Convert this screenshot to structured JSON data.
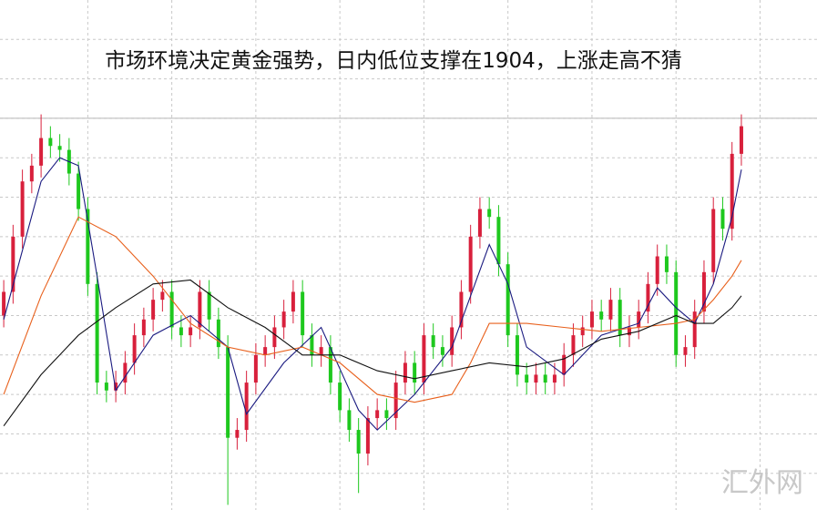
{
  "chart_data": {
    "type": "candlestick",
    "title": "市场环境决定黄金强势，日内低位支撑在1904，上涨走高不猜",
    "watermark": "汇外网",
    "up_color": "#d8203c",
    "down_color": "#1ec81e",
    "ylim": [
      0,
      130
    ],
    "yticks": [
      10,
      20,
      30,
      40,
      50,
      60,
      70,
      80,
      90,
      100,
      110,
      120
    ],
    "xlim": [
      -0.4,
      87.1
    ],
    "xticks": [
      9,
      18,
      27,
      36,
      45,
      54,
      63,
      72,
      81
    ],
    "grid": true,
    "hline": 100,
    "open": [
      50,
      56,
      70,
      84,
      88,
      95,
      93,
      92,
      86,
      77,
      58,
      33,
      31,
      33,
      38,
      45,
      49,
      54,
      56,
      47,
      45,
      47,
      56,
      49,
      42,
      19,
      21,
      33,
      40,
      42,
      47,
      51,
      56,
      45,
      40,
      42,
      33,
      26,
      21,
      15,
      24,
      26,
      24,
      33,
      38,
      33,
      45,
      42,
      40,
      47,
      56,
      70,
      77,
      75,
      63,
      45,
      35,
      33,
      35,
      33,
      35,
      40,
      45,
      47,
      51,
      49,
      54,
      45,
      47,
      51,
      58,
      65,
      61,
      40,
      42,
      51,
      61,
      77,
      72,
      91
    ],
    "high": [
      59,
      73,
      87,
      91,
      101,
      98,
      96,
      95,
      89,
      80,
      61,
      36,
      36,
      41,
      48,
      52,
      57,
      59,
      59,
      50,
      50,
      59,
      59,
      52,
      45,
      24,
      36,
      43,
      45,
      50,
      54,
      59,
      59,
      48,
      45,
      45,
      36,
      29,
      24,
      27,
      29,
      29,
      36,
      41,
      41,
      48,
      48,
      45,
      50,
      59,
      73,
      80,
      80,
      78,
      66,
      48,
      38,
      38,
      38,
      38,
      43,
      48,
      50,
      54,
      54,
      57,
      57,
      50,
      54,
      61,
      68,
      68,
      64,
      45,
      54,
      64,
      80,
      80,
      94,
      101
    ],
    "low": [
      47,
      53,
      67,
      81,
      85,
      90,
      89,
      83,
      74,
      55,
      30,
      28,
      28,
      30,
      35,
      42,
      46,
      51,
      44,
      42,
      42,
      44,
      46,
      39,
      2,
      16,
      18,
      30,
      37,
      39,
      44,
      48,
      42,
      37,
      37,
      30,
      23,
      18,
      5,
      12,
      21,
      21,
      21,
      30,
      30,
      30,
      39,
      37,
      37,
      44,
      53,
      67,
      72,
      60,
      42,
      32,
      30,
      30,
      30,
      30,
      32,
      37,
      42,
      44,
      46,
      46,
      42,
      42,
      44,
      48,
      55,
      58,
      37,
      37,
      39,
      48,
      58,
      69,
      69,
      88
    ],
    "close": [
      56,
      70,
      84,
      88,
      95,
      93,
      92,
      86,
      77,
      58,
      33,
      31,
      33,
      38,
      45,
      49,
      54,
      56,
      47,
      45,
      47,
      56,
      49,
      42,
      19,
      21,
      33,
      40,
      42,
      47,
      51,
      56,
      45,
      40,
      42,
      33,
      26,
      21,
      15,
      24,
      26,
      24,
      33,
      38,
      33,
      45,
      42,
      40,
      47,
      56,
      70,
      77,
      75,
      63,
      45,
      35,
      33,
      35,
      33,
      35,
      40,
      45,
      47,
      51,
      49,
      54,
      45,
      47,
      51,
      58,
      65,
      61,
      40,
      42,
      51,
      61,
      77,
      72,
      91,
      98
    ],
    "lines": [
      {
        "color": "#1a1a80",
        "x": [
          0,
          4,
          6,
          8,
          10,
          12,
          16,
          20,
          24,
          26,
          30,
          34,
          38,
          40,
          44,
          48,
          50,
          52,
          54,
          56,
          60,
          64,
          68,
          70,
          72,
          74,
          76,
          78,
          79
        ],
        "values": [
          49,
          84,
          90,
          88,
          60,
          31,
          45,
          50,
          42,
          25,
          38,
          47,
          26,
          21,
          30,
          42,
          55,
          68,
          58,
          42,
          35,
          45,
          48,
          57,
          52,
          48,
          58,
          75,
          87
        ]
      },
      {
        "color": "#e8601c",
        "x": [
          0,
          4,
          8,
          12,
          16,
          20,
          24,
          28,
          32,
          36,
          40,
          44,
          48,
          50,
          52,
          56,
          60,
          64,
          68,
          72,
          74,
          76,
          78,
          79
        ],
        "values": [
          30,
          55,
          75,
          70,
          60,
          48,
          42,
          40,
          42,
          38,
          30,
          28,
          30,
          38,
          48,
          48,
          47,
          46,
          47,
          48,
          49,
          54,
          60,
          64
        ]
      },
      {
        "color": "#111111",
        "x": [
          0,
          4,
          8,
          12,
          16,
          20,
          24,
          28,
          32,
          36,
          40,
          44,
          48,
          52,
          56,
          60,
          64,
          68,
          72,
          74,
          76,
          78,
          79
        ],
        "values": [
          22,
          35,
          45,
          52,
          58,
          59,
          52,
          47,
          40,
          40,
          36,
          34,
          36,
          38,
          37,
          39,
          44,
          46,
          50,
          48,
          48,
          52,
          55
        ]
      }
    ]
  }
}
